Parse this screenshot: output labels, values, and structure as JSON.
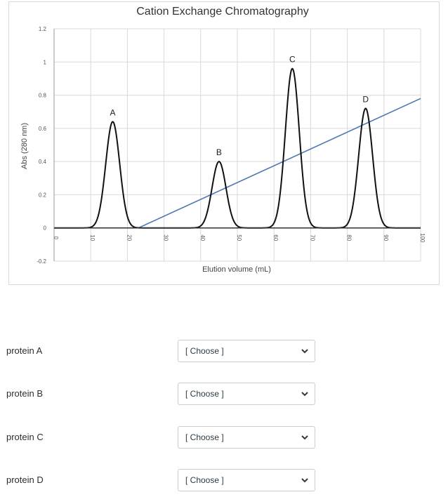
{
  "chart_data": {
    "type": "line",
    "title": "Cation Exchange Chromatography",
    "xlabel": "Elution volume (mL)",
    "ylabel": "Abs (280 nm)",
    "xlim": [
      0,
      100
    ],
    "ylim": [
      -0.2,
      1.2
    ],
    "x_ticks": [
      0,
      10,
      20,
      30,
      40,
      50,
      60,
      70,
      80,
      90,
      100
    ],
    "y_ticks": [
      -0.2,
      0,
      0.2,
      0.4,
      0.6,
      0.8,
      1,
      1.2
    ],
    "y_tick_labels": [
      "-0.2",
      "0",
      "0.2",
      "0.4",
      "0.6",
      "0.8",
      "1",
      "1.2"
    ],
    "grid": true,
    "peaks": [
      {
        "label": "A",
        "center": 16,
        "height": 0.64,
        "width": 1.9
      },
      {
        "label": "B",
        "center": 45,
        "height": 0.4,
        "width": 1.9
      },
      {
        "label": "C",
        "center": 65,
        "height": 0.96,
        "width": 1.9
      },
      {
        "label": "D",
        "center": 85,
        "height": 0.72,
        "width": 1.9
      }
    ],
    "gradient": {
      "points": [
        [
          0,
          0
        ],
        [
          23,
          0
        ],
        [
          100,
          0.78
        ]
      ],
      "color": "#4f76b3"
    },
    "trace_color": "#111111"
  },
  "questions": [
    {
      "label": "protein A",
      "placeholder": "[ Choose ]"
    },
    {
      "label": "protein B",
      "placeholder": "[ Choose ]"
    },
    {
      "label": "protein C",
      "placeholder": "[ Choose ]"
    },
    {
      "label": "protein D",
      "placeholder": "[ Choose ]"
    }
  ]
}
